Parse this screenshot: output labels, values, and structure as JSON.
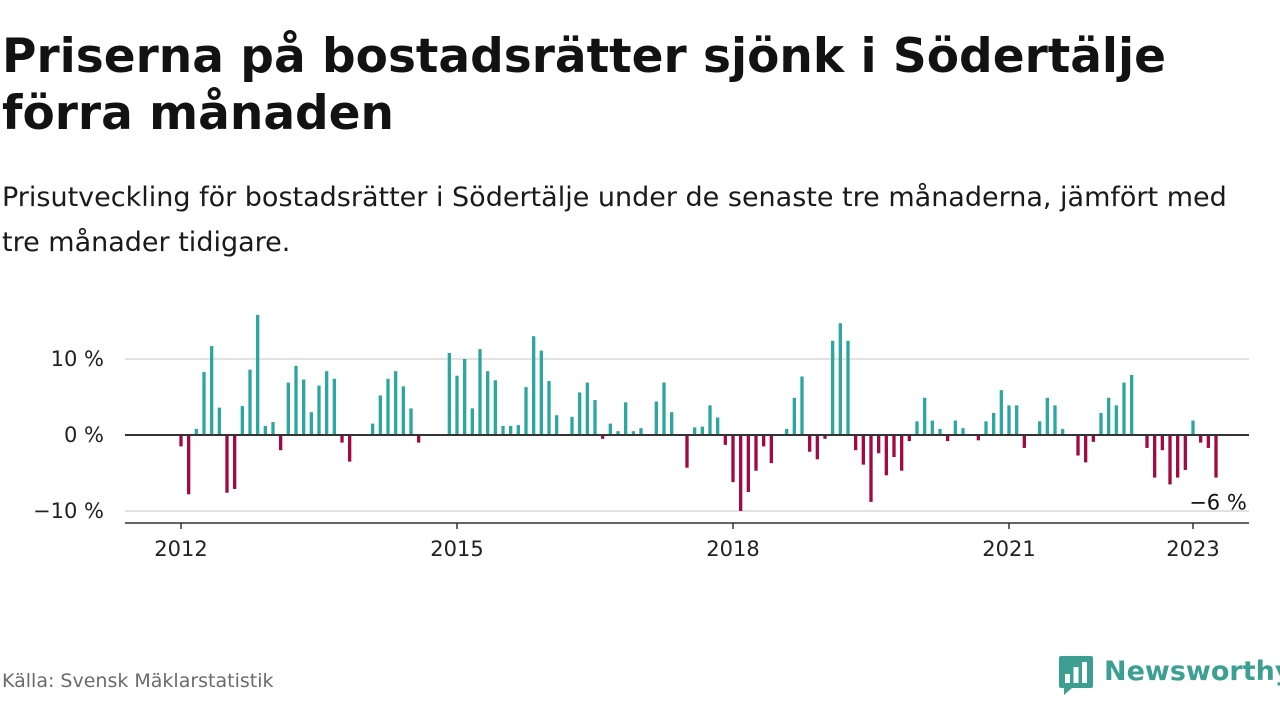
{
  "header": {
    "title": "Priserna på bostadsrätter sjönk i Södertälje förra månaden",
    "subtitle": "Prisutveckling för bostadsrätter i Södertälje under de senaste tre månaderna, jämfört med tre månader tidigare."
  },
  "footer": {
    "source": "Källa: Svensk Mäklarstatistik",
    "brand": "Newsworthy",
    "brand_icon": "bar-chart-logo-icon"
  },
  "colors": {
    "positive": "#2ca6a0",
    "negative": "#a3093e",
    "axis": "#333333",
    "grid": "#d9d9d9",
    "brand": "#3c9f91"
  },
  "chart_data": {
    "type": "bar",
    "x_start": "2012-01",
    "x_end": "2023-01",
    "ylabel": "",
    "xlabel": "",
    "ylim": [
      -12,
      16
    ],
    "y_ticks": [
      {
        "value": 10,
        "label": "10 %"
      },
      {
        "value": 0,
        "label": "0 %"
      },
      {
        "value": -10,
        "label": "−10 %"
      }
    ],
    "x_ticks": [
      {
        "date": "2012-01",
        "label": "2012"
      },
      {
        "date": "2015-01",
        "label": "2015"
      },
      {
        "date": "2018-01",
        "label": "2018"
      },
      {
        "date": "2021-01",
        "label": "2021"
      },
      {
        "date": "2023-01",
        "label": "2023"
      }
    ],
    "end_label": "−6 %",
    "values": [
      -1.5,
      -7.8,
      0.8,
      8.3,
      11.7,
      3.6,
      -7.6,
      -7.1,
      3.8,
      8.6,
      15.8,
      1.2,
      1.7,
      -2,
      6.9,
      9.1,
      7.3,
      3,
      6.5,
      8.4,
      7.4,
      -1,
      -3.5,
      0,
      0,
      1.5,
      5.2,
      7.4,
      8.4,
      6.4,
      3.5,
      -1,
      0,
      0,
      0,
      10.8,
      7.8,
      10,
      3.5,
      11.3,
      8.4,
      7.2,
      1.2,
      1.2,
      1.3,
      6.3,
      13,
      11.1,
      7.1,
      2.6,
      0,
      2.4,
      5.6,
      6.9,
      4.6,
      -0.5,
      1.5,
      0.5,
      4.3,
      0.5,
      0.9,
      0,
      4.4,
      6.9,
      3,
      0,
      -4.3,
      1,
      1.1,
      3.9,
      2.3,
      -1.3,
      -6.2,
      -10,
      -7.5,
      -4.7,
      -1.5,
      -3.7,
      0,
      0.8,
      4.9,
      7.7,
      -2.2,
      -3.2,
      -0.5,
      12.4,
      14.7,
      12.4,
      -2,
      -3.9,
      -8.8,
      -2.4,
      -5.3,
      -2.9,
      -4.7,
      -0.8,
      1.8,
      4.9,
      1.9,
      0.8,
      -0.8,
      1.9,
      0.9,
      0,
      -0.7,
      1.8,
      2.9,
      5.9,
      3.9,
      3.9,
      -1.7,
      0,
      1.8,
      4.9,
      3.9,
      0.8,
      0,
      -2.7,
      -3.6,
      -0.9,
      2.9,
      4.9,
      3.9,
      6.9,
      7.9,
      0,
      -1.7,
      -5.6,
      -2,
      -6.5,
      -5.6,
      -4.6,
      1.9,
      -1,
      -1.7,
      -5.6
    ]
  }
}
